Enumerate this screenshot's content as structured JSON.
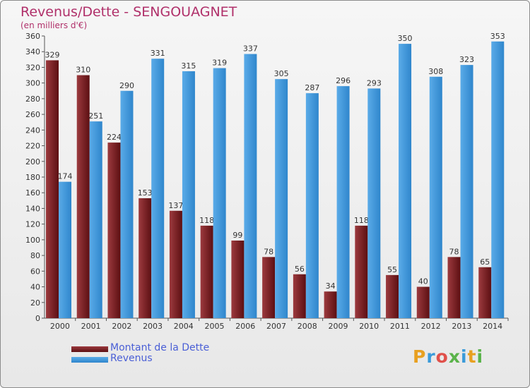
{
  "chart_data": {
    "type": "bar",
    "title": "Revenus/Dette - SENGOUAGNET",
    "subtitle": "(en milliers d'€)",
    "categories": [
      "2000",
      "2001",
      "2002",
      "2003",
      "2004",
      "2005",
      "2006",
      "2007",
      "2008",
      "2009",
      "2010",
      "2011",
      "2012",
      "2013",
      "2014"
    ],
    "series": [
      {
        "name": "Montant de la Dette",
        "color": "#7a1a1e",
        "values": [
          329,
          310,
          224,
          153,
          137,
          118,
          99,
          78,
          56,
          34,
          118,
          55,
          40,
          78,
          65
        ]
      },
      {
        "name": "Revenus",
        "color": "#3d97dc",
        "values": [
          174,
          251,
          290,
          331,
          315,
          319,
          337,
          305,
          287,
          296,
          293,
          350,
          308,
          323,
          353
        ]
      }
    ],
    "ylim": [
      0,
      360
    ],
    "ytick_step": 20,
    "grid": false,
    "legend": "bottom-left"
  },
  "logo": {
    "letters": [
      "P",
      "r",
      "o",
      "x",
      "i",
      "t",
      "i"
    ],
    "colors": [
      "#e8a020",
      "#3a9ad9",
      "#e0504a",
      "#5ab34a",
      "#3a9ad9",
      "#e8a020",
      "#5ab34a"
    ]
  }
}
